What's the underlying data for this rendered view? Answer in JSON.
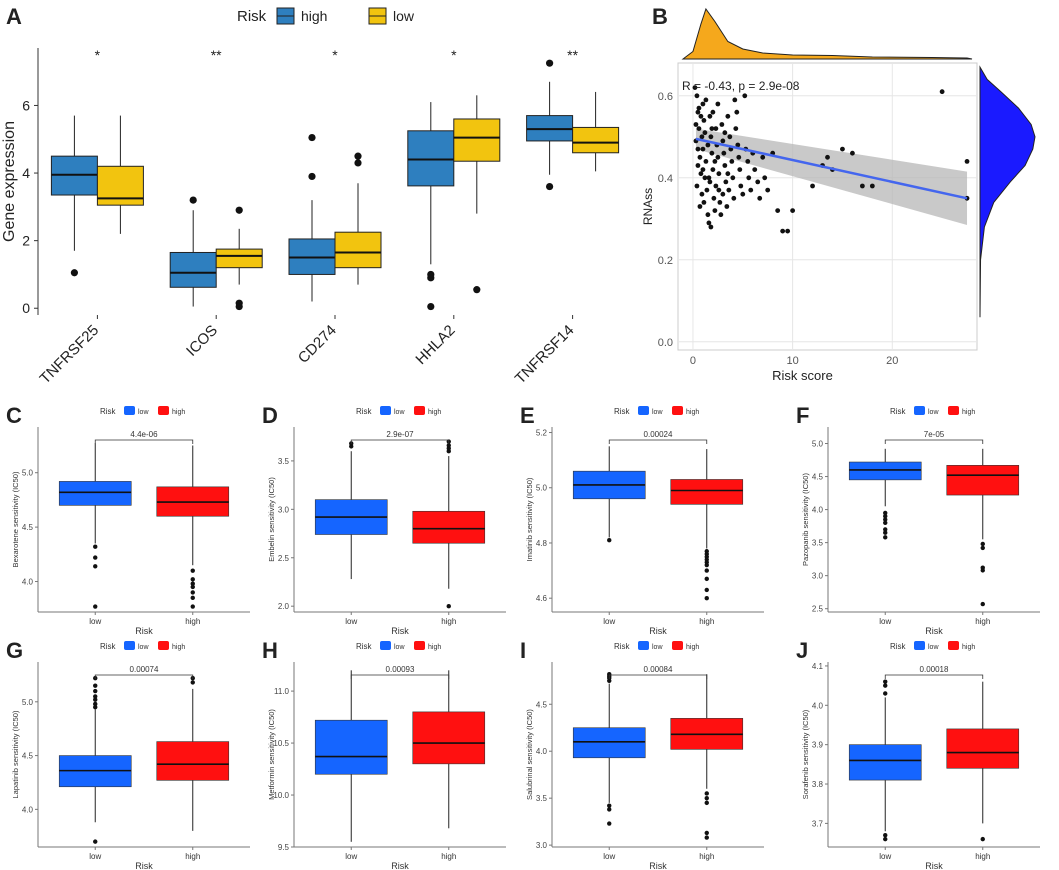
{
  "colors": {
    "a_high": "#2e7fbf",
    "a_low": "#f2c40f",
    "drug_low": "#1565ff",
    "drug_high": "#ff1010",
    "density_top": "#f5a81c",
    "density_right": "#1a1aff",
    "fit_line": "#4466ee",
    "ci_band": "#b7b7b7",
    "grid": "#e6e6e6",
    "panel_border": "#333333"
  },
  "chart_data": [
    {
      "panel": "A",
      "type": "box",
      "ylabel": "Gene expression",
      "ylim": [
        -0.2,
        7.7
      ],
      "yticks": [
        0,
        2,
        4,
        6
      ],
      "legend": {
        "title": "Risk",
        "entries": [
          "high",
          "low"
        ]
      },
      "categories": [
        "TNFRSF25",
        "ICOS",
        "CD274",
        "HHLA2",
        "TNFRSF14"
      ],
      "significance": [
        "*",
        "**",
        "*",
        "*",
        "**"
      ],
      "series": [
        {
          "name": "high",
          "boxes": [
            {
              "whislo": 1.7,
              "q1": 3.35,
              "med": 3.95,
              "q3": 4.5,
              "whishi": 5.7,
              "fliers": [
                1.05
              ]
            },
            {
              "whislo": 0.05,
              "q1": 0.62,
              "med": 1.05,
              "q3": 1.65,
              "whishi": 2.9,
              "fliers": [
                3.2
              ]
            },
            {
              "whislo": 0.2,
              "q1": 1.0,
              "med": 1.5,
              "q3": 2.05,
              "whishi": 3.2,
              "fliers": [
                3.9,
                5.05
              ]
            },
            {
              "whislo": 1.3,
              "q1": 3.62,
              "med": 4.4,
              "q3": 5.25,
              "whishi": 6.1,
              "fliers": [
                0.9,
                1.0,
                0.05
              ]
            },
            {
              "whislo": 3.95,
              "q1": 4.95,
              "med": 5.3,
              "q3": 5.7,
              "whishi": 6.7,
              "fliers": [
                7.25,
                3.6
              ]
            }
          ]
        },
        {
          "name": "low",
          "boxes": [
            {
              "whislo": 2.2,
              "q1": 3.05,
              "med": 3.25,
              "q3": 4.2,
              "whishi": 5.7,
              "fliers": []
            },
            {
              "whislo": 0.7,
              "q1": 1.2,
              "med": 1.55,
              "q3": 1.75,
              "whishi": 2.35,
              "fliers": [
                2.9,
                0.15,
                0.05
              ]
            },
            {
              "whislo": 0.7,
              "q1": 1.2,
              "med": 1.65,
              "q3": 2.25,
              "whishi": 3.7,
              "fliers": [
                4.3,
                4.5
              ]
            },
            {
              "whislo": 2.8,
              "q1": 4.35,
              "med": 5.05,
              "q3": 5.6,
              "whishi": 6.3,
              "fliers": [
                0.55
              ]
            },
            {
              "whislo": 4.05,
              "q1": 4.6,
              "med": 4.9,
              "q3": 5.35,
              "whishi": 6.4,
              "fliers": []
            }
          ]
        }
      ]
    },
    {
      "panel": "B",
      "type": "scatter",
      "xlabel": "Risk score",
      "ylabel": "RNAss",
      "xlim": [
        -1.5,
        28.5
      ],
      "ylim": [
        -0.02,
        0.68
      ],
      "xticks": [
        0,
        10,
        20
      ],
      "yticks": [
        0.0,
        0.2,
        0.4,
        0.6
      ],
      "annotation": "R = -0.43, p = 2.9e-08",
      "fit": {
        "x": [
          0.3,
          27.5
        ],
        "y": [
          0.495,
          0.35
        ],
        "ci_halfwidth_start": 0.025,
        "ci_halfwidth_end": 0.065
      },
      "points": [
        [
          0.2,
          0.62
        ],
        [
          0.4,
          0.6
        ],
        [
          0.5,
          0.56
        ],
        [
          0.6,
          0.52
        ],
        [
          0.3,
          0.49
        ],
        [
          0.7,
          0.45
        ],
        [
          0.5,
          0.43
        ],
        [
          0.8,
          0.41
        ],
        [
          0.4,
          0.38
        ],
        [
          0.9,
          0.36
        ],
        [
          1.0,
          0.58
        ],
        [
          1.1,
          0.54
        ],
        [
          1.2,
          0.51
        ],
        [
          1.0,
          0.47
        ],
        [
          1.3,
          0.44
        ],
        [
          1.2,
          0.4
        ],
        [
          1.4,
          0.37
        ],
        [
          1.1,
          0.34
        ],
        [
          1.5,
          0.31
        ],
        [
          1.6,
          0.29
        ],
        [
          0.6,
          0.57
        ],
        [
          0.9,
          0.5
        ],
        [
          1.7,
          0.55
        ],
        [
          1.8,
          0.5
        ],
        [
          1.9,
          0.46
        ],
        [
          2.0,
          0.42
        ],
        [
          1.7,
          0.39
        ],
        [
          2.1,
          0.35
        ],
        [
          2.2,
          0.32
        ],
        [
          2.0,
          0.56
        ],
        [
          2.3,
          0.52
        ],
        [
          2.4,
          0.48
        ],
        [
          2.5,
          0.45
        ],
        [
          2.6,
          0.41
        ],
        [
          2.3,
          0.38
        ],
        [
          2.7,
          0.34
        ],
        [
          2.8,
          0.31
        ],
        [
          2.9,
          0.53
        ],
        [
          3.0,
          0.49
        ],
        [
          3.1,
          0.46
        ],
        [
          3.2,
          0.43
        ],
        [
          3.3,
          0.39
        ],
        [
          3.0,
          0.36
        ],
        [
          3.4,
          0.33
        ],
        [
          3.5,
          0.55
        ],
        [
          3.7,
          0.5
        ],
        [
          3.8,
          0.47
        ],
        [
          3.9,
          0.44
        ],
        [
          4.0,
          0.4
        ],
        [
          3.6,
          0.37
        ],
        [
          4.1,
          0.35
        ],
        [
          4.2,
          0.59
        ],
        [
          4.3,
          0.52
        ],
        [
          4.5,
          0.48
        ],
        [
          4.6,
          0.45
        ],
        [
          4.7,
          0.42
        ],
        [
          4.8,
          0.38
        ],
        [
          5.0,
          0.36
        ],
        [
          5.2,
          0.6
        ],
        [
          5.3,
          0.47
        ],
        [
          5.5,
          0.44
        ],
        [
          5.6,
          0.4
        ],
        [
          5.8,
          0.37
        ],
        [
          6.0,
          0.46
        ],
        [
          6.2,
          0.42
        ],
        [
          6.5,
          0.39
        ],
        [
          6.7,
          0.35
        ],
        [
          7.0,
          0.45
        ],
        [
          7.2,
          0.4
        ],
        [
          7.5,
          0.37
        ],
        [
          8.0,
          0.46
        ],
        [
          8.5,
          0.32
        ],
        [
          9.0,
          0.27
        ],
        [
          9.5,
          0.27
        ],
        [
          10.0,
          0.32
        ],
        [
          12.0,
          0.38
        ],
        [
          13.0,
          0.43
        ],
        [
          13.5,
          0.45
        ],
        [
          14.0,
          0.42
        ],
        [
          15.0,
          0.47
        ],
        [
          16.0,
          0.46
        ],
        [
          17.0,
          0.38
        ],
        [
          18.0,
          0.38
        ],
        [
          25.0,
          0.61
        ],
        [
          27.5,
          0.44
        ],
        [
          27.5,
          0.35
        ],
        [
          0.3,
          0.53
        ],
        [
          0.5,
          0.47
        ],
        [
          0.8,
          0.55
        ],
        [
          1.0,
          0.42
        ],
        [
          1.3,
          0.59
        ],
        [
          1.5,
          0.48
        ],
        [
          1.6,
          0.4
        ],
        [
          1.9,
          0.52
        ],
        [
          2.2,
          0.44
        ],
        [
          2.5,
          0.58
        ],
        [
          2.6,
          0.37
        ],
        [
          3.2,
          0.51
        ],
        [
          3.5,
          0.41
        ],
        [
          4.4,
          0.56
        ],
        [
          0.7,
          0.33
        ],
        [
          1.8,
          0.28
        ]
      ]
    },
    {
      "panel": "C",
      "type": "box",
      "xlabel": "Risk",
      "ylabel": "Bexarotene sensitivity (IC50)",
      "ylim": [
        3.72,
        5.42
      ],
      "yticks": [
        4.0,
        4.5,
        5.0
      ],
      "legend": {
        "title": "Risk",
        "entries": [
          "low",
          "high"
        ]
      },
      "pvalue": "4.4e-06",
      "categories": [
        "low",
        "high"
      ],
      "boxes": [
        {
          "whislo": 4.35,
          "q1": 4.7,
          "med": 4.82,
          "q3": 4.92,
          "whishi": 5.27,
          "fliers": [
            4.32,
            4.22,
            4.14,
            3.77
          ]
        },
        {
          "whislo": 4.15,
          "q1": 4.6,
          "med": 4.73,
          "q3": 4.87,
          "whishi": 5.25,
          "fliers": [
            4.1,
            4.02,
            3.98,
            3.95,
            3.9,
            3.85,
            3.77
          ]
        }
      ]
    },
    {
      "panel": "D",
      "type": "box",
      "xlabel": "Risk",
      "ylabel": "Embelin sensitivity (IC50)",
      "ylim": [
        1.94,
        3.85
      ],
      "yticks": [
        2.0,
        2.5,
        3.0,
        3.5
      ],
      "legend": {
        "title": "Risk",
        "entries": [
          "low",
          "high"
        ]
      },
      "pvalue": "2.9e-07",
      "categories": [
        "low",
        "high"
      ],
      "boxes": [
        {
          "whislo": 2.28,
          "q1": 2.74,
          "med": 2.92,
          "q3": 3.1,
          "whishi": 3.6,
          "fliers": [
            3.65,
            3.68
          ]
        },
        {
          "whislo": 2.18,
          "q1": 2.65,
          "med": 2.8,
          "q3": 2.98,
          "whishi": 3.55,
          "fliers": [
            3.6,
            3.63,
            3.66,
            3.7,
            2.0
          ]
        }
      ]
    },
    {
      "panel": "E",
      "type": "box",
      "xlabel": "Risk",
      "ylabel": "Imatinib sensitivity (IC50)",
      "ylim": [
        4.55,
        5.22
      ],
      "yticks": [
        4.6,
        4.8,
        5.0,
        5.2
      ],
      "legend": {
        "title": "Risk",
        "entries": [
          "low",
          "high"
        ]
      },
      "pvalue": "0.00024",
      "categories": [
        "low",
        "high"
      ],
      "boxes": [
        {
          "whislo": 4.82,
          "q1": 4.96,
          "med": 5.01,
          "q3": 5.06,
          "whishi": 5.15,
          "fliers": [
            4.81
          ]
        },
        {
          "whislo": 4.78,
          "q1": 4.94,
          "med": 4.99,
          "q3": 5.03,
          "whishi": 5.14,
          "fliers": [
            4.77,
            4.76,
            4.75,
            4.74,
            4.73,
            4.72,
            4.7,
            4.67,
            4.63,
            4.6
          ]
        }
      ]
    },
    {
      "panel": "F",
      "type": "box",
      "xlabel": "Risk",
      "ylabel": "Pazopanib sensitivity (IC50)",
      "ylim": [
        2.45,
        5.25
      ],
      "yticks": [
        2.5,
        3.0,
        3.5,
        4.0,
        4.5,
        5.0
      ],
      "legend": {
        "title": "Risk",
        "entries": [
          "low",
          "high"
        ]
      },
      "pvalue": "7e-05",
      "categories": [
        "low",
        "high"
      ],
      "boxes": [
        {
          "whislo": 4.05,
          "q1": 4.45,
          "med": 4.6,
          "q3": 4.72,
          "whishi": 4.92,
          "fliers": [
            3.95,
            3.9,
            3.85,
            3.8,
            3.7,
            3.65,
            3.58
          ]
        },
        {
          "whislo": 3.55,
          "q1": 4.22,
          "med": 4.52,
          "q3": 4.67,
          "whishi": 4.92,
          "fliers": [
            3.48,
            3.42,
            3.12,
            3.08,
            2.57
          ]
        }
      ]
    },
    {
      "panel": "G",
      "type": "box",
      "xlabel": "Risk",
      "ylabel": "Lapatinib sensitivity (IC50)",
      "ylim": [
        3.65,
        5.37
      ],
      "yticks": [
        4.0,
        4.5,
        5.0
      ],
      "legend": {
        "title": "Risk",
        "entries": [
          "low",
          "high"
        ]
      },
      "pvalue": "0.00074",
      "categories": [
        "low",
        "high"
      ],
      "boxes": [
        {
          "whislo": 3.88,
          "q1": 4.21,
          "med": 4.36,
          "q3": 4.5,
          "whishi": 4.93,
          "fliers": [
            4.95,
            4.98,
            5.02,
            5.05,
            5.1,
            5.15,
            5.22,
            3.7
          ]
        },
        {
          "whislo": 3.8,
          "q1": 4.27,
          "med": 4.42,
          "q3": 4.63,
          "whishi": 5.12,
          "fliers": [
            5.18,
            5.22
          ]
        }
      ]
    },
    {
      "panel": "H",
      "type": "box",
      "xlabel": "Risk",
      "ylabel": "Metformin sensitivity (IC50)",
      "ylim": [
        9.5,
        11.28
      ],
      "yticks": [
        9.5,
        10.0,
        10.5,
        11.0
      ],
      "legend": {
        "title": "Risk",
        "entries": [
          "low",
          "high"
        ]
      },
      "pvalue": "0.00093",
      "categories": [
        "low",
        "high"
      ],
      "boxes": [
        {
          "whislo": 9.55,
          "q1": 10.2,
          "med": 10.37,
          "q3": 10.72,
          "whishi": 11.2,
          "fliers": []
        },
        {
          "whislo": 9.68,
          "q1": 10.3,
          "med": 10.5,
          "q3": 10.8,
          "whishi": 11.2,
          "fliers": []
        }
      ]
    },
    {
      "panel": "I",
      "type": "box",
      "xlabel": "Risk",
      "ylabel": "Salubrinal sensitivity (IC50)",
      "ylim": [
        2.98,
        4.95
      ],
      "yticks": [
        3.0,
        3.5,
        4.0,
        4.5
      ],
      "legend": {
        "title": "Risk",
        "entries": [
          "low",
          "high"
        ]
      },
      "pvalue": "0.00084",
      "categories": [
        "low",
        "high"
      ],
      "boxes": [
        {
          "whislo": 3.45,
          "q1": 3.93,
          "med": 4.1,
          "q3": 4.25,
          "whishi": 4.72,
          "fliers": [
            4.75,
            4.78,
            4.8,
            4.82,
            3.42,
            3.38,
            3.23
          ]
        },
        {
          "whislo": 3.6,
          "q1": 4.02,
          "med": 4.18,
          "q3": 4.35,
          "whishi": 4.82,
          "fliers": [
            3.55,
            3.5,
            3.45,
            3.13,
            3.08
          ]
        }
      ]
    },
    {
      "panel": "J",
      "type": "box",
      "xlabel": "Risk",
      "ylabel": "Sorafenib sensitivity (IC50)",
      "ylim": [
        3.64,
        4.11
      ],
      "yticks": [
        3.7,
        3.8,
        3.9,
        4.0,
        4.1
      ],
      "legend": {
        "title": "Risk",
        "entries": [
          "low",
          "high"
        ]
      },
      "pvalue": "0.00018",
      "categories": [
        "low",
        "high"
      ],
      "boxes": [
        {
          "whislo": 3.68,
          "q1": 3.81,
          "med": 3.86,
          "q3": 3.9,
          "whishi": 4.02,
          "fliers": [
            4.03,
            4.05,
            4.06,
            3.67,
            3.66
          ]
        },
        {
          "whislo": 3.7,
          "q1": 3.84,
          "med": 3.88,
          "q3": 3.94,
          "whishi": 4.06,
          "fliers": [
            3.66
          ]
        }
      ]
    }
  ]
}
